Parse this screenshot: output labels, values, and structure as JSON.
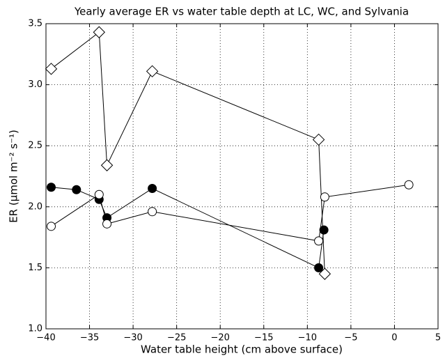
{
  "chart_data": {
    "type": "line",
    "title": "Yearly average ER vs water table depth at LC, WC, and Sylvania",
    "x_label": "Water table height (cm above surface)",
    "y_label": "ER (μmol m⁻² s⁻¹)",
    "xlim": [
      -40,
      5
    ],
    "ylim": [
      1.0,
      3.5
    ],
    "xticks": [
      {
        "value": -40,
        "label": "−40"
      },
      {
        "value": -35,
        "label": "−35"
      },
      {
        "value": -30,
        "label": "−30"
      },
      {
        "value": -25,
        "label": "−25"
      },
      {
        "value": -20,
        "label": "−20"
      },
      {
        "value": -15,
        "label": "−15"
      },
      {
        "value": -10,
        "label": "−10"
      },
      {
        "value": -5,
        "label": "−5"
      },
      0,
      5
    ],
    "yticks": [
      {
        "value": 1,
        "label": "1.0"
      },
      1.5,
      {
        "value": 2,
        "label": "2.0"
      },
      2.5,
      {
        "value": 3,
        "label": "3.0"
      },
      3.5
    ],
    "grid": true,
    "series": [
      {
        "marker": "diamond",
        "color": "#000000",
        "fill": "#ffffff",
        "x": [
          -39.4,
          -33.9,
          -33.0,
          -27.8,
          -8.7,
          -8.0
        ],
        "values": [
          3.13,
          3.43,
          2.34,
          3.11,
          2.55,
          1.45
        ]
      },
      {
        "marker": "circle",
        "color": "#000000",
        "fill": "#000000",
        "x": [
          -39.4,
          -36.5,
          -33.9,
          -33.0,
          -27.8,
          -8.7,
          -8.1
        ],
        "values": [
          2.16,
          2.14,
          2.06,
          1.91,
          2.15,
          1.5,
          1.81
        ]
      },
      {
        "marker": "circle",
        "color": "#000000",
        "fill": "#ffffff",
        "x": [
          -39.4,
          -33.9,
          -33.0,
          -27.8,
          -8.7,
          -8.0,
          1.65
        ],
        "values": [
          1.84,
          2.1,
          1.86,
          1.96,
          1.72,
          2.08,
          2.18
        ]
      }
    ]
  }
}
